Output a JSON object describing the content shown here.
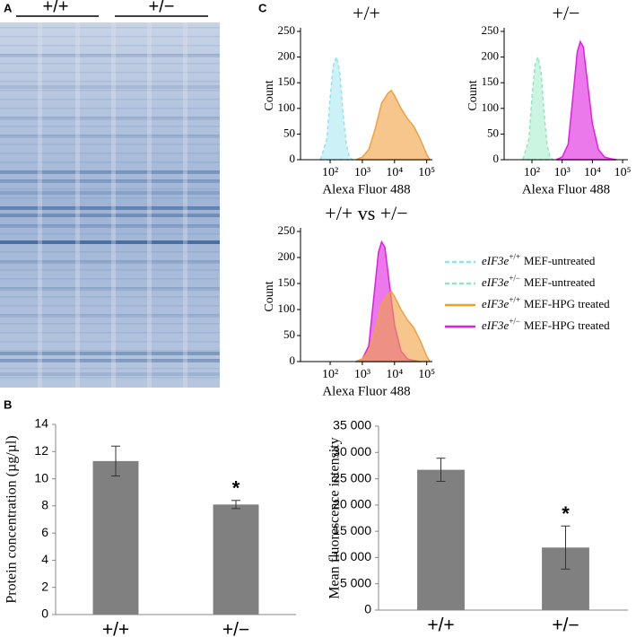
{
  "panel_labels": [
    "A",
    "B",
    "C"
  ],
  "gel": {
    "lane_groups": [
      "+/+",
      "+/−"
    ]
  },
  "chart_data": [
    {
      "type": "histogram",
      "title": "+/+",
      "x_label": "Alexa Fluor 488",
      "y_label": "Count",
      "log_x": true,
      "xlim": [
        12,
        150000
      ],
      "ylim": [
        0,
        250
      ],
      "yticks": [
        0,
        50,
        100,
        150,
        200,
        250
      ],
      "xticks": [
        {
          "value": 100,
          "label": "10²"
        },
        {
          "value": 1000,
          "label": "10³"
        },
        {
          "value": 10000,
          "label": "10⁴"
        },
        {
          "value": 100000,
          "label": "10⁵"
        }
      ],
      "series": [
        {
          "color": "#8fe3ef",
          "dashed": true,
          "x": [
            50,
            79,
            100,
            126,
            158,
            200,
            251,
            316,
            398,
            501
          ],
          "values": [
            0,
            40,
            120,
            185,
            200,
            170,
            90,
            30,
            5,
            0
          ]
        },
        {
          "color": "#f0a040",
          "dashed": false,
          "x": [
            631,
            1000,
            1585,
            2512,
            3981,
            6310,
            7943,
            10000,
            15849,
            25119,
            39811,
            63096,
            100000,
            126000
          ],
          "values": [
            0,
            5,
            20,
            60,
            110,
            130,
            135,
            125,
            100,
            80,
            65,
            40,
            10,
            0
          ]
        }
      ]
    },
    {
      "type": "histogram",
      "title": "+/−",
      "x_label": "Alexa Fluor 488",
      "y_label": "Count",
      "log_x": true,
      "xlim": [
        12,
        150000
      ],
      "ylim": [
        0,
        250
      ],
      "yticks": [
        0,
        50,
        100,
        150,
        200,
        250
      ],
      "xticks": [
        {
          "value": 100,
          "label": "10²"
        },
        {
          "value": 1000,
          "label": "10³"
        },
        {
          "value": 10000,
          "label": "10⁴"
        },
        {
          "value": 100000,
          "label": "10⁵"
        }
      ],
      "series": [
        {
          "color": "#8ee8bc",
          "dashed": true,
          "x": [
            50,
            79,
            100,
            126,
            158,
            200,
            251,
            316,
            398,
            501
          ],
          "values": [
            0,
            40,
            120,
            185,
            200,
            170,
            90,
            30,
            5,
            0
          ]
        },
        {
          "color": "#e020e0",
          "dashed": false,
          "x": [
            631,
            1000,
            1585,
            2512,
            3162,
            3981,
            5012,
            6310,
            10000,
            15849,
            25119,
            39811,
            63096
          ],
          "values": [
            0,
            5,
            30,
            150,
            210,
            230,
            220,
            170,
            70,
            20,
            5,
            2,
            0
          ]
        }
      ]
    },
    {
      "type": "histogram",
      "title": "+/+ vs +/−",
      "x_label": "Alexa Fluor 488",
      "y_label": "Count",
      "log_x": true,
      "xlim": [
        12,
        150000
      ],
      "ylim": [
        0,
        250
      ],
      "yticks": [
        0,
        50,
        100,
        150,
        200,
        250
      ],
      "xticks": [
        {
          "value": 100,
          "label": "10²"
        },
        {
          "value": 1000,
          "label": "10³"
        },
        {
          "value": 10000,
          "label": "10⁴"
        },
        {
          "value": 100000,
          "label": "10⁵"
        }
      ],
      "series": [
        {
          "color": "#e020e0",
          "dashed": false,
          "x": [
            631,
            1000,
            1585,
            2512,
            3162,
            3981,
            5012,
            6310,
            10000,
            15849,
            25119,
            39811,
            63096
          ],
          "values": [
            0,
            5,
            30,
            150,
            210,
            230,
            220,
            170,
            70,
            20,
            5,
            2,
            0
          ]
        },
        {
          "color": "#f0a040",
          "dashed": false,
          "x": [
            631,
            1000,
            1585,
            2512,
            3981,
            6310,
            7943,
            10000,
            15849,
            25119,
            39811,
            63096,
            100000,
            126000
          ],
          "values": [
            0,
            5,
            20,
            60,
            110,
            130,
            135,
            125,
            100,
            80,
            65,
            40,
            10,
            0
          ]
        }
      ],
      "legend": [
        {
          "gene": "eIF3e",
          "genotype": "+/+",
          "text": "MEF-untreated",
          "color": "#8fe3ef",
          "dashed": true
        },
        {
          "gene": "eIF3e",
          "genotype": "+/−",
          "text": "MEF-untreated",
          "color": "#8ee8bc",
          "dashed": true
        },
        {
          "gene": "eIF3e",
          "genotype": "+/+",
          "text": "MEF-HPG treated",
          "color": "#f0a020",
          "dashed": false
        },
        {
          "gene": "eIF3e",
          "genotype": "+/−",
          "text": "MEF-HPG treated",
          "color": "#e020e0",
          "dashed": false
        }
      ]
    },
    {
      "type": "bar",
      "y_label": "Protein concentration (µg/µl)",
      "categories": [
        "+/+",
        "+/−"
      ],
      "values": [
        11.3,
        8.1
      ],
      "errors": [
        1.1,
        0.3
      ],
      "color": "#808080",
      "ylim": [
        0,
        14
      ],
      "yticks": [
        0,
        2,
        4,
        6,
        8,
        10,
        12,
        14
      ],
      "annotations": [
        {
          "text": "*",
          "category": 1
        }
      ]
    },
    {
      "type": "bar",
      "y_label": "Mean fluorescence intensity",
      "categories": [
        "+/+",
        "+/−"
      ],
      "values": [
        26700,
        11900
      ],
      "errors": [
        2200,
        4100
      ],
      "color": "#808080",
      "ylim": [
        0,
        35000
      ],
      "yticks": [
        0,
        {
          "value": 5000,
          "label": "5 000"
        },
        {
          "value": 10000,
          "label": "10 000"
        },
        {
          "value": 15000,
          "label": "15 000"
        },
        {
          "value": 20000,
          "label": "20 000"
        },
        {
          "value": 25000,
          "label": "25 000"
        },
        {
          "value": 30000,
          "label": "30 000"
        },
        {
          "value": 35000,
          "label": "35 000"
        }
      ],
      "annotations": [
        {
          "text": "*",
          "category": 1
        }
      ]
    }
  ]
}
